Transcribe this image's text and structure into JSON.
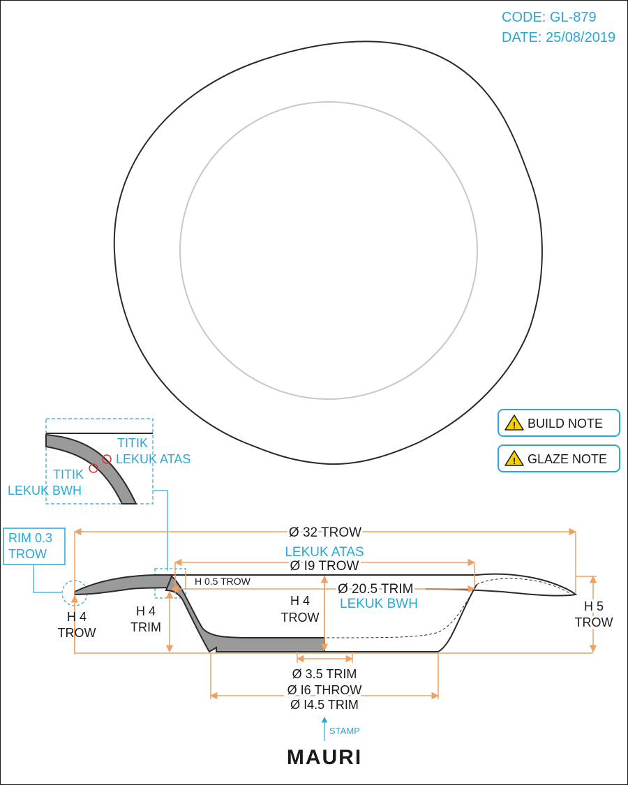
{
  "header": {
    "code": "CODE: GL-879",
    "date": "DATE: 25/08/2019"
  },
  "notes": [
    {
      "label": "BUILD NOTE",
      "icon": "warning-icon"
    },
    {
      "label": "GLAZE NOTE",
      "icon": "warning-icon"
    }
  ],
  "detail": {
    "titik_atas_1": "TITIK",
    "titik_atas_2": "LEKUK ATAS",
    "titik_bwh_1": "TITIK",
    "titik_bwh_2": "LEKUK BWH"
  },
  "rim_callout": {
    "line1": "RIM 0.3",
    "line2": "TROW"
  },
  "dims": {
    "d32": "Ø 32 TROW",
    "lekuk_atas": "LEKUK ATAS",
    "d19": "Ø I9 TROW",
    "h05": "H 0.5 TROW",
    "d205": "Ø 20.5 TRIM",
    "lekuk_bwh": "LEKUK BWH",
    "h4_left_1": "H 4",
    "h4_left_2": "TROW",
    "h4_trim_1": "H 4",
    "h4_trim_2": "TRIM",
    "h4_mid_1": "H 4",
    "h4_mid_2": "TROW",
    "h5_1": "H 5",
    "h5_2": "TROW",
    "d35": "Ø 3.5 TRIM",
    "d16": "Ø I6 THROW",
    "d145": "Ø I4.5 TRIM"
  },
  "stamp": {
    "label": "STAMP",
    "brand": "MAURI"
  },
  "colors": {
    "accent_blue": "#29a8d8",
    "dimension_orange": "#f0a060",
    "outline": "#2a2a2a",
    "section_fill": "#9a9a9a",
    "marker_red": "#e03030"
  }
}
